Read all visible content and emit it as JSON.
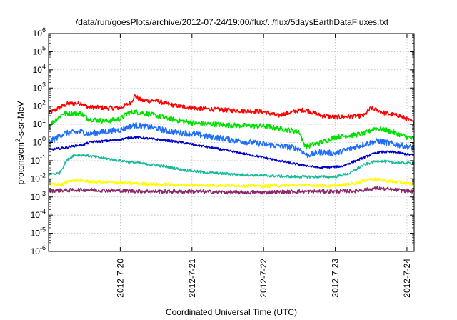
{
  "chart_data": {
    "type": "line",
    "title": "/data/run/goesPlots/archive/2012-07-24/19:00/flux/../flux/5daysEarthDataFluxes.txt",
    "xlabel": "Coordinated Universal Time (UTC)",
    "ylabel_base": "protons/cm",
    "ylabel_sup": "2",
    "ylabel_rest": "-s-sr-MeV",
    "y_scale": "log",
    "ylim": [
      1e-06,
      1000000.0
    ],
    "y_ticks": [
      {
        "exp": "-6"
      },
      {
        "exp": "-5"
      },
      {
        "exp": "-4"
      },
      {
        "exp": "-3"
      },
      {
        "exp": "-2"
      },
      {
        "exp": "-1"
      },
      {
        "exp": "0"
      },
      {
        "exp": "1"
      },
      {
        "exp": "2"
      },
      {
        "exp": "3"
      },
      {
        "exp": "4"
      },
      {
        "exp": "5"
      },
      {
        "exp": "6"
      }
    ],
    "y_tick_base": "10",
    "x_range_days": [
      0,
      5.1
    ],
    "x_ticks": [
      {
        "label": "2012-7-20",
        "day": 1
      },
      {
        "label": "2012-7-21",
        "day": 2
      },
      {
        "label": "2012-7-22",
        "day": 3
      },
      {
        "label": "2012-7-23",
        "day": 4
      },
      {
        "label": "2012-7-24",
        "day": 5
      }
    ],
    "x_start": "2012-7-19 03:00",
    "grid": true,
    "series": [
      {
        "color": "#ff0000",
        "noise": 0.12,
        "points": [
          [
            0,
            40
          ],
          [
            0.25,
            130
          ],
          [
            0.45,
            150
          ],
          [
            0.55,
            90
          ],
          [
            0.8,
            80
          ],
          [
            1.0,
            80
          ],
          [
            1.15,
            160
          ],
          [
            1.2,
            380
          ],
          [
            1.3,
            200
          ],
          [
            1.5,
            200
          ],
          [
            1.7,
            120
          ],
          [
            2.0,
            80
          ],
          [
            2.5,
            60
          ],
          [
            3.0,
            50
          ],
          [
            3.2,
            30
          ],
          [
            3.5,
            60
          ],
          [
            3.6,
            60
          ],
          [
            3.8,
            30
          ],
          [
            4.0,
            25
          ],
          [
            4.4,
            30
          ],
          [
            4.5,
            80
          ],
          [
            4.7,
            40
          ],
          [
            4.9,
            30
          ],
          [
            5.1,
            12
          ]
        ]
      },
      {
        "color": "#00e000",
        "noise": 0.14,
        "points": [
          [
            0,
            8
          ],
          [
            0.2,
            40
          ],
          [
            0.45,
            40
          ],
          [
            0.55,
            20
          ],
          [
            0.8,
            15
          ],
          [
            1.0,
            20
          ],
          [
            1.1,
            40
          ],
          [
            1.2,
            50
          ],
          [
            1.35,
            40
          ],
          [
            1.5,
            30
          ],
          [
            1.7,
            20
          ],
          [
            2.0,
            12
          ],
          [
            2.5,
            9
          ],
          [
            3.0,
            8
          ],
          [
            3.5,
            4
          ],
          [
            3.55,
            1
          ],
          [
            3.6,
            0.6
          ],
          [
            3.8,
            1
          ],
          [
            4.0,
            2
          ],
          [
            4.4,
            3
          ],
          [
            4.55,
            6
          ],
          [
            4.7,
            5
          ],
          [
            5.1,
            1.5
          ]
        ]
      },
      {
        "color": "#1f6fff",
        "noise": 0.16,
        "points": [
          [
            0,
            1
          ],
          [
            0.2,
            3
          ],
          [
            0.45,
            4
          ],
          [
            0.55,
            3
          ],
          [
            0.8,
            4
          ],
          [
            1.0,
            5
          ],
          [
            1.2,
            9
          ],
          [
            1.3,
            8
          ],
          [
            1.5,
            6
          ],
          [
            1.7,
            4
          ],
          [
            2.0,
            3
          ],
          [
            2.5,
            1.5
          ],
          [
            3.0,
            0.8
          ],
          [
            3.3,
            0.6
          ],
          [
            3.5,
            0.45
          ],
          [
            3.6,
            0.2
          ],
          [
            3.8,
            0.3
          ],
          [
            4.0,
            0.25
          ],
          [
            4.4,
            0.8
          ],
          [
            4.6,
            1.2
          ],
          [
            5.1,
            0.5
          ]
        ]
      },
      {
        "color": "#0000cc",
        "noise": 0.06,
        "points": [
          [
            0,
            0.4
          ],
          [
            0.2,
            0.5
          ],
          [
            0.5,
            0.8
          ],
          [
            0.6,
            1.1
          ],
          [
            0.8,
            1.2
          ],
          [
            1.0,
            1.5
          ],
          [
            1.2,
            2
          ],
          [
            1.5,
            1.5
          ],
          [
            1.8,
            1.1
          ],
          [
            2.0,
            0.8
          ],
          [
            2.3,
            0.5
          ],
          [
            2.6,
            0.3
          ],
          [
            3.0,
            0.15
          ],
          [
            3.4,
            0.07
          ],
          [
            3.8,
            0.04
          ],
          [
            4.1,
            0.05
          ],
          [
            4.4,
            0.15
          ],
          [
            4.6,
            0.3
          ],
          [
            4.8,
            0.3
          ],
          [
            5.1,
            0.2
          ]
        ]
      },
      {
        "color": "#1abc9c",
        "noise": 0.07,
        "points": [
          [
            0,
            0.018
          ],
          [
            0.15,
            0.02
          ],
          [
            0.25,
            0.1
          ],
          [
            0.35,
            0.2
          ],
          [
            0.5,
            0.2
          ],
          [
            0.7,
            0.15
          ],
          [
            1.0,
            0.1
          ],
          [
            1.3,
            0.07
          ],
          [
            1.6,
            0.05
          ],
          [
            1.9,
            0.03
          ],
          [
            2.2,
            0.022
          ],
          [
            2.6,
            0.018
          ],
          [
            3.0,
            0.015
          ],
          [
            3.5,
            0.013
          ],
          [
            4.0,
            0.013
          ],
          [
            4.2,
            0.02
          ],
          [
            4.4,
            0.06
          ],
          [
            4.6,
            0.1
          ],
          [
            4.8,
            0.08
          ],
          [
            5.1,
            0.07
          ]
        ]
      },
      {
        "color": "#ffff00",
        "noise": 0.08,
        "points": [
          [
            0,
            0.005
          ],
          [
            0.2,
            0.005
          ],
          [
            0.3,
            0.008
          ],
          [
            0.45,
            0.008
          ],
          [
            0.6,
            0.007
          ],
          [
            1.0,
            0.006
          ],
          [
            1.5,
            0.005
          ],
          [
            2.0,
            0.0045
          ],
          [
            3.0,
            0.004
          ],
          [
            3.5,
            0.0045
          ],
          [
            4.0,
            0.004
          ],
          [
            4.3,
            0.006
          ],
          [
            4.5,
            0.01
          ],
          [
            4.7,
            0.008
          ],
          [
            5.1,
            0.005
          ]
        ]
      },
      {
        "color": "#8b2a6a",
        "noise": 0.1,
        "points": [
          [
            0,
            0.0022
          ],
          [
            0.5,
            0.0025
          ],
          [
            1.0,
            0.0022
          ],
          [
            1.5,
            0.002
          ],
          [
            2.0,
            0.002
          ],
          [
            2.5,
            0.0018
          ],
          [
            3.0,
            0.0018
          ],
          [
            3.5,
            0.002
          ],
          [
            4.0,
            0.002
          ],
          [
            4.3,
            0.0022
          ],
          [
            4.6,
            0.003
          ],
          [
            4.8,
            0.0025
          ],
          [
            5.1,
            0.002
          ]
        ]
      }
    ]
  }
}
